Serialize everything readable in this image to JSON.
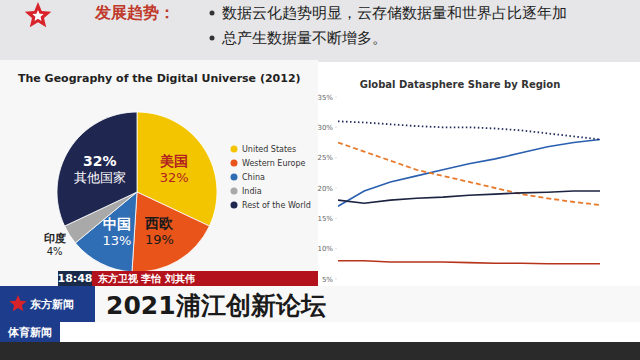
{
  "slide": {
    "heading": "发展趋势：",
    "bullets": [
      "数据云化趋势明显，云存储数据量和世界占比逐年加",
      "总产生数据量不断增多。"
    ]
  },
  "broadcast": {
    "time": "18:48",
    "reporters": "东方卫视 李怡 刘其伟",
    "headline": "2021浦江创新论坛",
    "logo_text": "东方新闻",
    "ticker_label": "体育新闻"
  },
  "chart_data": [
    {
      "type": "pie",
      "title": "The Geography of the Digital Universe (2012)",
      "categories": [
        "United States",
        "Western Europe",
        "China",
        "India",
        "Rest of the World"
      ],
      "labels": [
        "美国",
        "西欧",
        "中国",
        "印度",
        "其他国家"
      ],
      "values": [
        32,
        19,
        13,
        4,
        32
      ],
      "value_labels": [
        "32%",
        "19%",
        "13%",
        "4%",
        "32%"
      ],
      "colors": [
        "#f2c500",
        "#e8541a",
        "#2f6db5",
        "#a9a9a9",
        "#1f2650"
      ],
      "legend": "right",
      "data_labels": true
    },
    {
      "type": "line",
      "title": "Global Datasphere Share by Region",
      "categories": [
        null,
        null,
        null,
        null,
        null,
        null,
        null,
        null,
        null,
        null,
        null
      ],
      "series": [
        {
          "color": "#2a5fb0",
          "line_style": "solid",
          "values": [
            17,
            19.5,
            21,
            22,
            23,
            24,
            24.8,
            25.8,
            26.8,
            27.5,
            28
          ]
        },
        {
          "color": "#1f2a5c",
          "line_style": "dotted",
          "values": [
            31,
            30.8,
            30.5,
            30.2,
            30,
            30,
            29.8,
            29.5,
            29,
            28.5,
            28
          ]
        },
        {
          "color": "#e8782a",
          "line_style": "dashed",
          "values": [
            27.5,
            26,
            24.5,
            23,
            22,
            21,
            20,
            19,
            18.3,
            17.7,
            17.2
          ]
        },
        {
          "color": "#1c2340",
          "line_style": "solid",
          "values": [
            18,
            17.5,
            18,
            18.3,
            18.5,
            18.8,
            19,
            19.2,
            19.3,
            19.5,
            19.5
          ]
        },
        {
          "color": "#b5341a",
          "line_style": "solid",
          "values": [
            8,
            8,
            7.8,
            7.8,
            7.8,
            7.7,
            7.6,
            7.6,
            7.5,
            7.5,
            7.5
          ]
        }
      ],
      "ylim": [
        5,
        35
      ],
      "yticks": [
        {
          "value": 5,
          "label": "5%"
        },
        {
          "value": 10,
          "label": "10%"
        },
        {
          "value": 15,
          "label": "15%"
        },
        {
          "value": 20,
          "label": "20%"
        },
        {
          "value": 25,
          "label": "25%"
        },
        {
          "value": 30,
          "label": "30%"
        },
        {
          "value": 35,
          "label": "35%"
        }
      ],
      "tick_labels": "y",
      "grid": false
    }
  ]
}
